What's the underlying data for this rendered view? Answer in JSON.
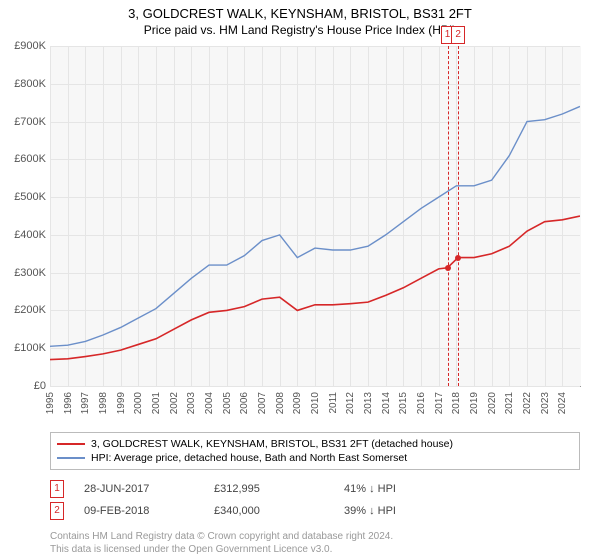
{
  "title": "3, GOLDCREST WALK, KEYNSHAM, BRISTOL, BS31 2FT",
  "subtitle": "Price paid vs. HM Land Registry's House Price Index (HPI)",
  "chart": {
    "type": "line",
    "background_color": "#f7f7f7",
    "grid_color": "#e5e5e5",
    "axis_color": "#999999",
    "ylim": [
      0,
      900
    ],
    "ytick_step": 100,
    "ytick_prefix": "£",
    "ytick_suffix": "K",
    "xlim": [
      1995,
      2025
    ],
    "xticks": [
      1995,
      1996,
      1997,
      1998,
      1999,
      2000,
      2001,
      2002,
      2003,
      2004,
      2005,
      2006,
      2007,
      2008,
      2009,
      2010,
      2011,
      2012,
      2013,
      2014,
      2015,
      2016,
      2017,
      2018,
      2019,
      2020,
      2021,
      2022,
      2023,
      2024
    ],
    "label_fontsize": 11,
    "series": [
      {
        "name": "3, GOLDCREST WALK, KEYNSHAM, BRISTOL, BS31 2FT (detached house)",
        "color": "#d62728",
        "line_width": 1.6,
        "x": [
          1995,
          1996,
          1997,
          1998,
          1999,
          2000,
          2001,
          2002,
          2003,
          2004,
          2005,
          2006,
          2007,
          2008,
          2009,
          2010,
          2011,
          2012,
          2013,
          2014,
          2015,
          2016,
          2017,
          2017.5,
          2018.1,
          2019,
          2020,
          2021,
          2022,
          2023,
          2024,
          2025
        ],
        "y": [
          70,
          72,
          78,
          85,
          95,
          110,
          125,
          150,
          175,
          195,
          200,
          210,
          230,
          235,
          200,
          215,
          215,
          218,
          222,
          240,
          260,
          285,
          310,
          313,
          340,
          340,
          350,
          370,
          410,
          435,
          440,
          450
        ]
      },
      {
        "name": "HPI: Average price, detached house, Bath and North East Somerset",
        "color": "#6b8fc9",
        "line_width": 1.4,
        "x": [
          1995,
          1996,
          1997,
          1998,
          1999,
          2000,
          2001,
          2002,
          2003,
          2004,
          2005,
          2006,
          2007,
          2008,
          2009,
          2010,
          2011,
          2012,
          2013,
          2014,
          2015,
          2016,
          2017,
          2018,
          2019,
          2020,
          2021,
          2022,
          2023,
          2024,
          2025
        ],
        "y": [
          105,
          108,
          118,
          135,
          155,
          180,
          205,
          245,
          285,
          320,
          320,
          345,
          385,
          400,
          340,
          365,
          360,
          360,
          370,
          400,
          435,
          470,
          500,
          530,
          530,
          545,
          610,
          700,
          705,
          720,
          740
        ]
      }
    ],
    "markers": [
      {
        "id": "1",
        "x": 2017.5,
        "y": 313,
        "color": "#d62728"
      },
      {
        "id": "2",
        "x": 2018.1,
        "y": 340,
        "color": "#d62728"
      }
    ]
  },
  "legend": {
    "items": [
      {
        "color": "#d62728",
        "label": "3, GOLDCREST WALK, KEYNSHAM, BRISTOL, BS31 2FT (detached house)"
      },
      {
        "color": "#6b8fc9",
        "label": "HPI: Average price, detached house, Bath and North East Somerset"
      }
    ]
  },
  "marker_table": {
    "rows": [
      {
        "id": "1",
        "color": "#d62728",
        "date": "28-JUN-2017",
        "price": "£312,995",
        "pct": "41%",
        "arrow": "↓",
        "vs": "HPI"
      },
      {
        "id": "2",
        "color": "#d62728",
        "date": "09-FEB-2018",
        "price": "£340,000",
        "pct": "39%",
        "arrow": "↓",
        "vs": "HPI"
      }
    ]
  },
  "attribution": {
    "line1": "Contains HM Land Registry data © Crown copyright and database right 2024.",
    "line2": "This data is licensed under the Open Government Licence v3.0."
  }
}
